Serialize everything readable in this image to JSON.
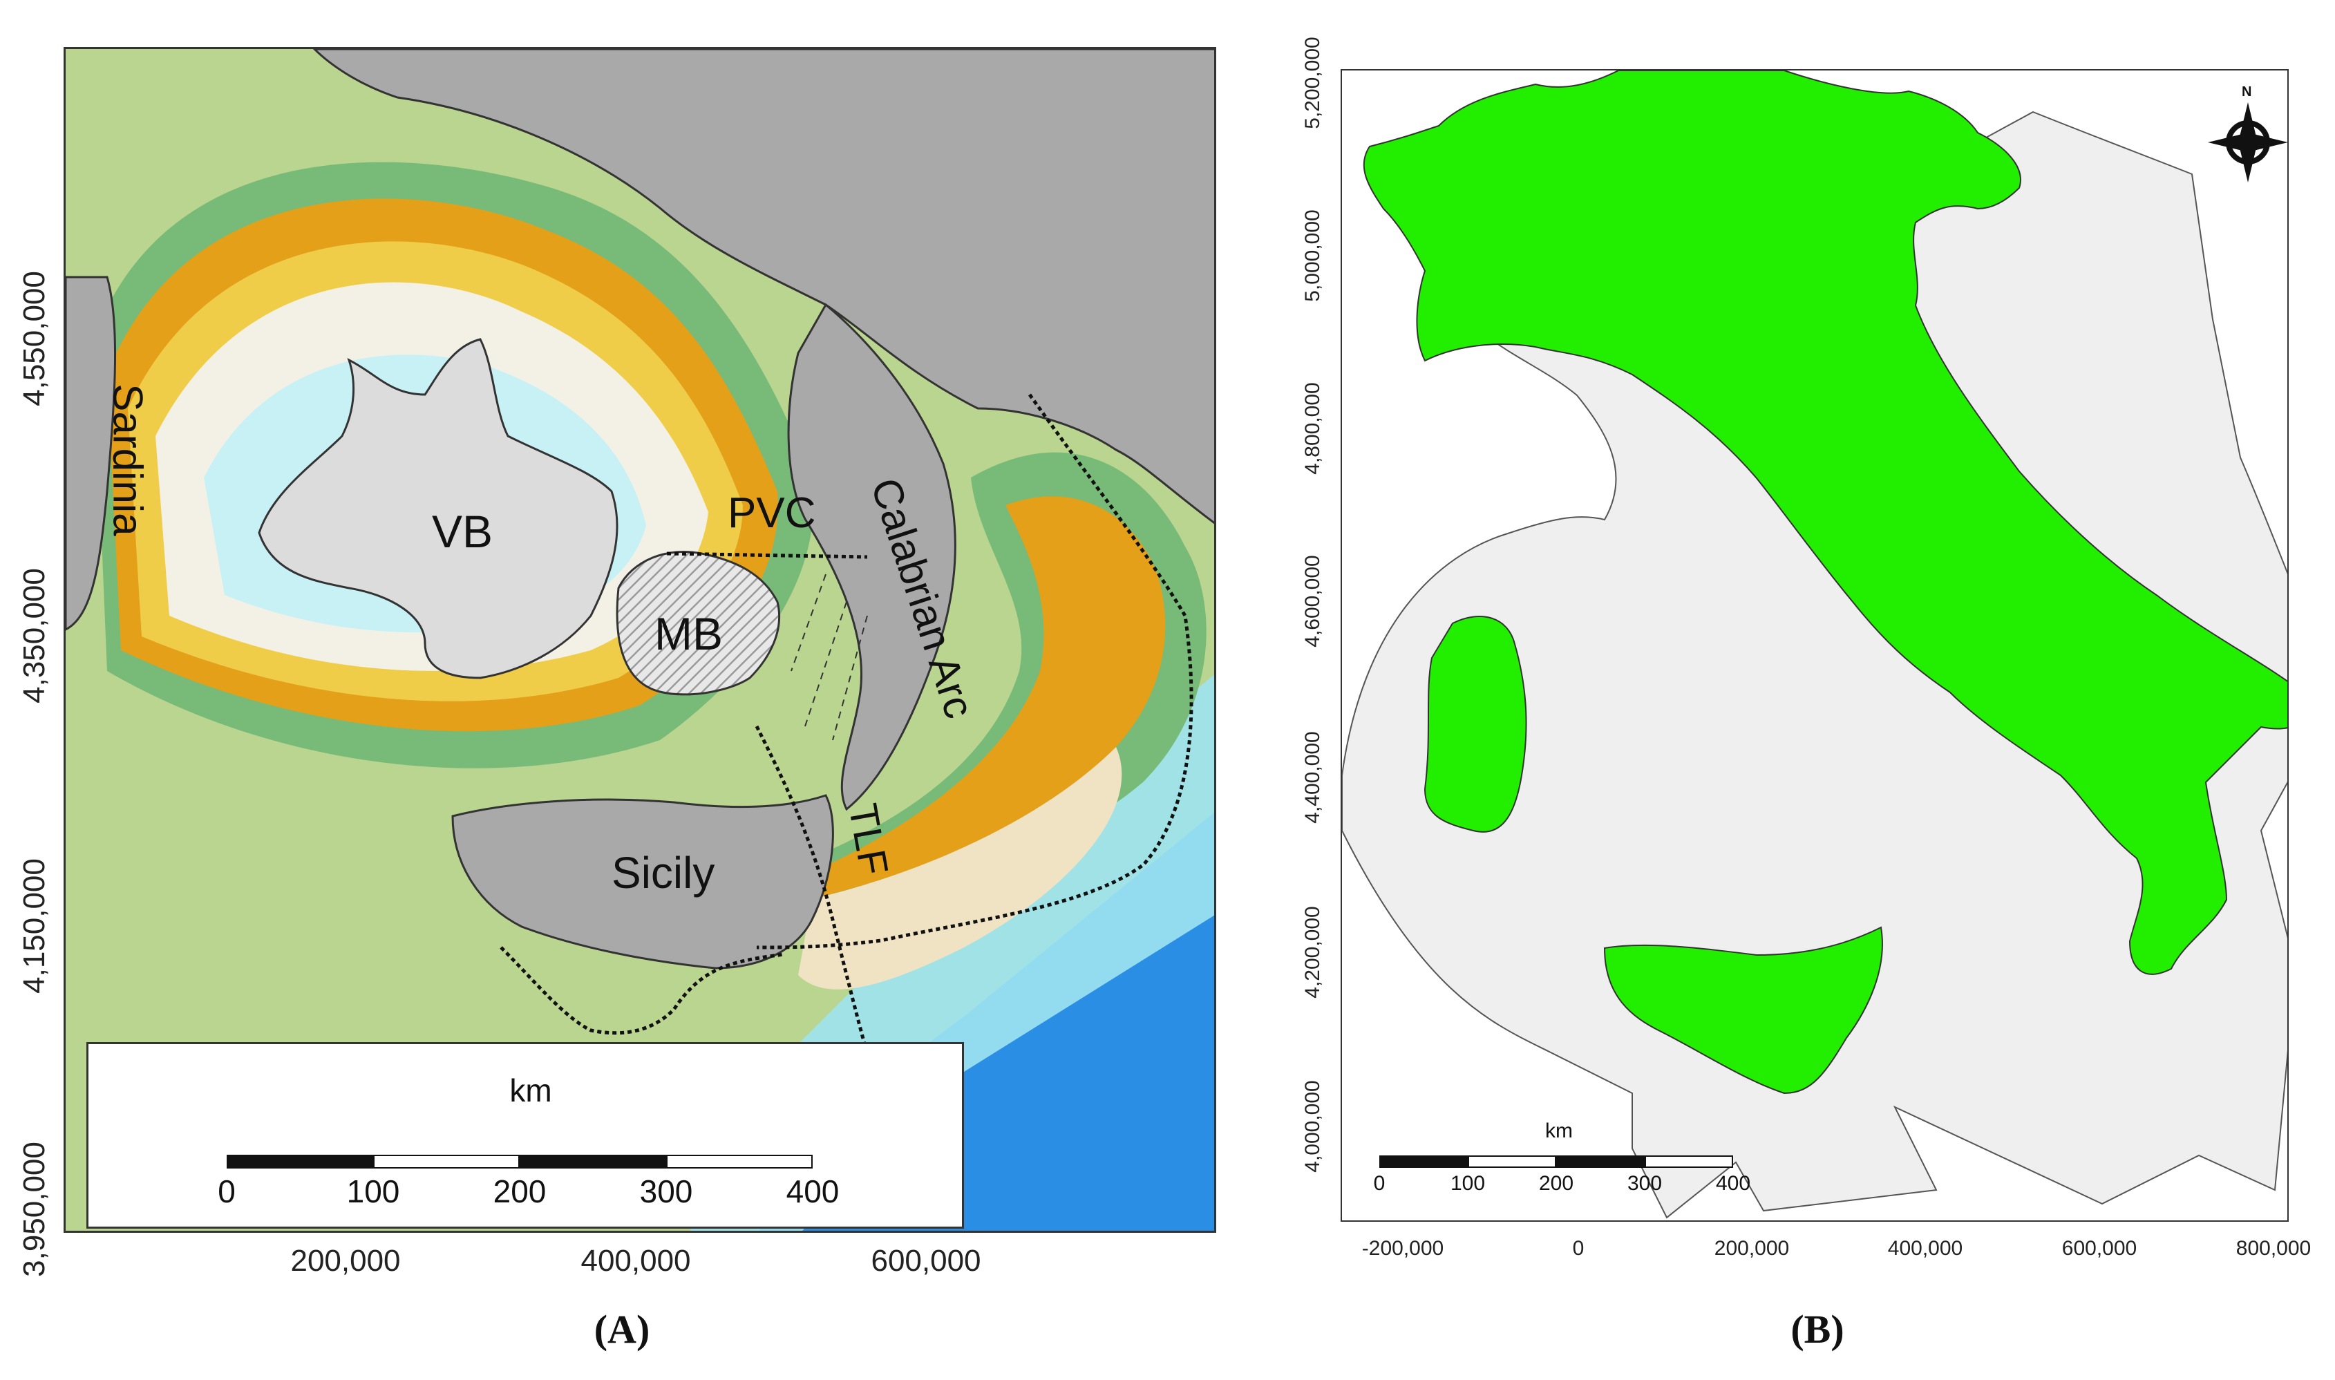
{
  "panel_a": {
    "caption": "(A)",
    "y_ticks": [
      "4,550,000",
      "4,350,000",
      "4,150,000",
      "3,950,000"
    ],
    "x_ticks": [
      "200,000",
      "400,000",
      "600,000"
    ],
    "labels": {
      "sardinia": "Sardinia",
      "vb": "VB",
      "mb": "MB",
      "pvc": "PVC",
      "calabrian_arc": "Calabrian Arc",
      "sicily": "Sicily",
      "tlf": "TLF"
    },
    "scale_bar": {
      "units": "km",
      "ticks": [
        "0",
        "100",
        "200",
        "300",
        "400"
      ]
    },
    "colors": {
      "land": "#a8a8a8",
      "basin": "#dcdcdc",
      "shallow": "#b9d58f",
      "slope_green": "#6fb56f",
      "slope_orange": "#e6a01e",
      "slope_yellow": "#f0c93c",
      "deep_white": "#f4f8f8",
      "deep_cyan": "#bff0f4",
      "deep_blue": "#1f86e0"
    }
  },
  "panel_b": {
    "caption": "(B)",
    "y_ticks": [
      "5,200,000",
      "5,000,000",
      "4,800,000",
      "4,600,000",
      "4,400,000",
      "4,200,000",
      "4,000,000"
    ],
    "x_ticks": [
      "-200,000",
      "0",
      "200,000",
      "400,000",
      "600,000",
      "800,000"
    ],
    "north_label": "N",
    "scale_bar": {
      "units": "km",
      "ticks": [
        "0",
        "100",
        "200",
        "300",
        "400"
      ]
    },
    "colors": {
      "land": "#22ee00",
      "sea_zone": "#efefef"
    }
  }
}
